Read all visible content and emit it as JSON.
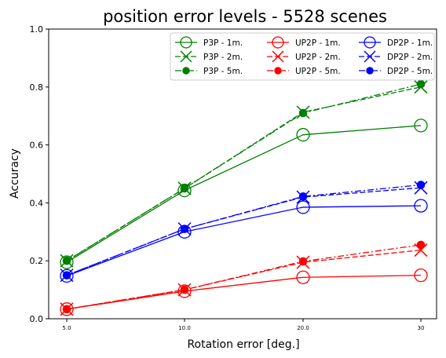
{
  "chart_data": {
    "type": "line",
    "title": "position error levels - 5528 scenes",
    "xlabel": "Rotation error [deg.]",
    "ylabel": "Accuracy",
    "x_tick_labels": [
      "5.0",
      "10.0",
      "20.0",
      "30"
    ],
    "y_ticks": [
      "0.0",
      "0.2",
      "0.4",
      "0.6",
      "0.8",
      "1.0"
    ],
    "ylim": [
      0,
      1
    ],
    "grid": false,
    "legend_position": "top-right",
    "legend_columns": 3,
    "series": [
      {
        "name": "P3P - 1m.",
        "color": "#008000",
        "linestyle": "solid",
        "marker": "open-circle",
        "values": [
          0.195,
          0.443,
          0.635,
          0.667
        ]
      },
      {
        "name": "P3P - 2m.",
        "color": "#008000",
        "linestyle": "dashed",
        "marker": "x",
        "values": [
          0.2,
          0.45,
          0.713,
          0.8
        ]
      },
      {
        "name": "P3P - 5m.",
        "color": "#008000",
        "linestyle": "dashdot",
        "marker": "dot",
        "values": [
          0.2,
          0.45,
          0.71,
          0.81
        ]
      },
      {
        "name": "UP2P - 1m.",
        "color": "#ff0000",
        "linestyle": "solid",
        "marker": "open-circle",
        "values": [
          0.033,
          0.095,
          0.143,
          0.15
        ]
      },
      {
        "name": "UP2P - 2m.",
        "color": "#ff0000",
        "linestyle": "dashed",
        "marker": "x",
        "values": [
          0.033,
          0.1,
          0.195,
          0.237
        ]
      },
      {
        "name": "UP2P - 5m.",
        "color": "#ff0000",
        "linestyle": "dashdot",
        "marker": "dot",
        "values": [
          0.033,
          0.1,
          0.198,
          0.255
        ]
      },
      {
        "name": "DP2P - 1m.",
        "color": "#0000ff",
        "linestyle": "solid",
        "marker": "open-circle",
        "values": [
          0.148,
          0.3,
          0.385,
          0.39
        ]
      },
      {
        "name": "DP2P - 2m.",
        "color": "#0000ff",
        "linestyle": "dashed",
        "marker": "x",
        "values": [
          0.15,
          0.31,
          0.42,
          0.452
        ]
      },
      {
        "name": "DP2P - 5m.",
        "color": "#0000ff",
        "linestyle": "dashdot",
        "marker": "dot",
        "values": [
          0.15,
          0.31,
          0.422,
          0.462
        ]
      }
    ]
  }
}
